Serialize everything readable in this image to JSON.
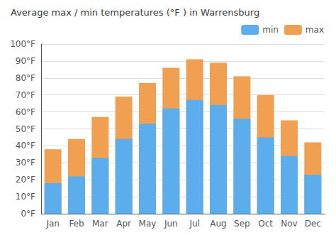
{
  "chart_data": {
    "type": "bar",
    "title": "Average max / min temperatures (°F ) in Warrensburg",
    "categories": [
      "Jan",
      "Feb",
      "Mar",
      "Apr",
      "May",
      "Jun",
      "Jul",
      "Aug",
      "Sep",
      "Oct",
      "Nov",
      "Dec"
    ],
    "series": [
      {
        "name": "min",
        "color": "#5badec",
        "values": [
          18,
          22,
          33,
          44,
          53,
          62,
          67,
          64,
          56,
          45,
          34,
          23
        ]
      },
      {
        "name": "max",
        "color": "#f0a050",
        "values": [
          38,
          44,
          57,
          69,
          77,
          86,
          91,
          89,
          81,
          70,
          55,
          42
        ]
      }
    ],
    "ylim": [
      0,
      100
    ],
    "yticks": [
      {
        "value": 0,
        "label": "0°F"
      },
      {
        "value": 10,
        "label": "10°F"
      },
      {
        "value": 20,
        "label": "20°F"
      },
      {
        "value": 30,
        "label": "30°F"
      },
      {
        "value": 40,
        "label": "40°F"
      },
      {
        "value": 50,
        "label": "50°F"
      },
      {
        "value": 60,
        "label": "60°F"
      },
      {
        "value": 70,
        "label": "70°F"
      },
      {
        "value": 80,
        "label": "80°F"
      },
      {
        "value": 90,
        "label": "90°F"
      },
      {
        "value": 100,
        "label": "100°F"
      }
    ],
    "grid": true,
    "legend": "upper right"
  }
}
